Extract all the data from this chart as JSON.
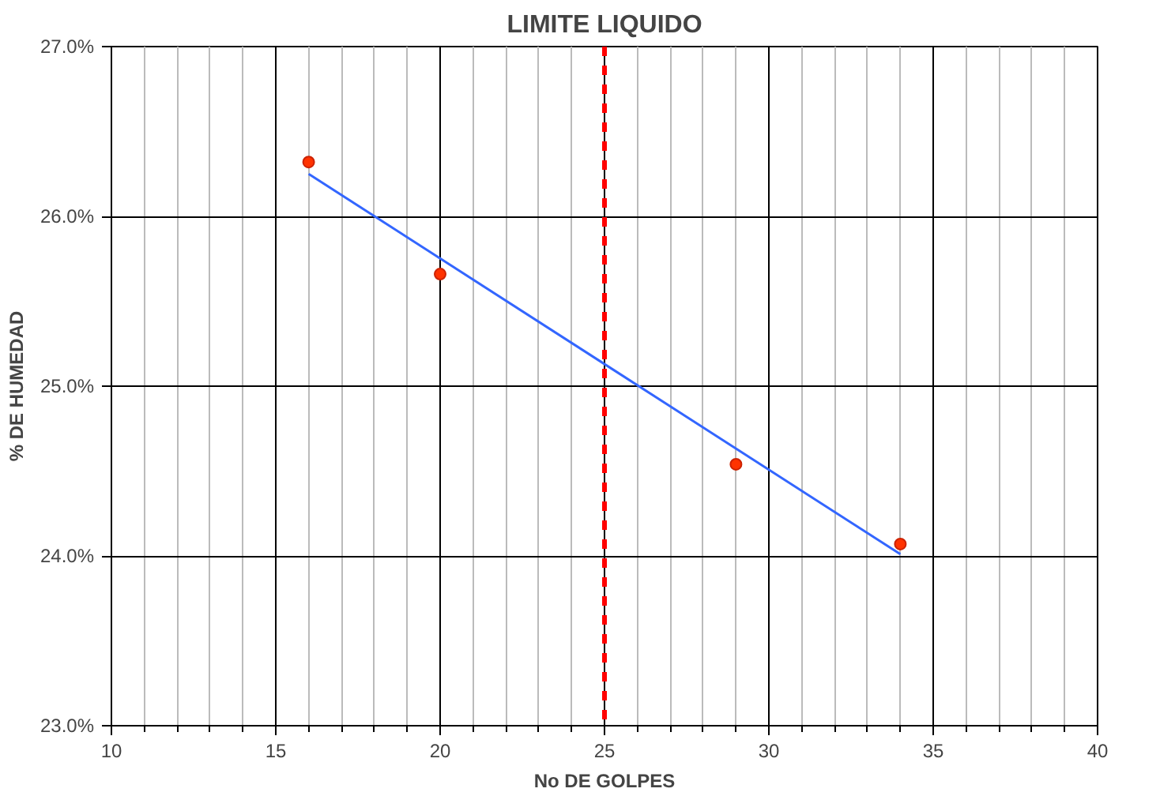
{
  "chart_data": {
    "type": "scatter",
    "title": "LIMITE LIQUIDO",
    "xlabel": "No DE GOLPES",
    "ylabel": "% DE HUMEDAD",
    "xlim": [
      10,
      40
    ],
    "xticks": [
      10,
      15,
      20,
      25,
      30,
      35,
      40
    ],
    "ylim": [
      23,
      27
    ],
    "yticks": [
      {
        "value": 23,
        "label": "23.0%"
      },
      {
        "value": 24,
        "label": "24.0%"
      },
      {
        "value": 25,
        "label": "25.0%"
      },
      {
        "value": 26,
        "label": "26.0%"
      },
      {
        "value": 27,
        "label": "27.0%"
      }
    ],
    "grid": true,
    "series": [
      {
        "color": "#ff3300",
        "marker": "circle",
        "x": [
          16,
          20,
          29,
          34
        ],
        "values": [
          26.32,
          25.66,
          24.54,
          24.07
        ]
      },
      {
        "type": "line",
        "color": "#3366ff",
        "line_style": "solid",
        "marker": "none",
        "x": [
          16,
          34
        ],
        "values": [
          26.25,
          24.01
        ]
      }
    ],
    "ref_lines": [
      {
        "axis": "x",
        "value": 25,
        "color": "#ff0000",
        "line_style": "dashed"
      }
    ]
  }
}
